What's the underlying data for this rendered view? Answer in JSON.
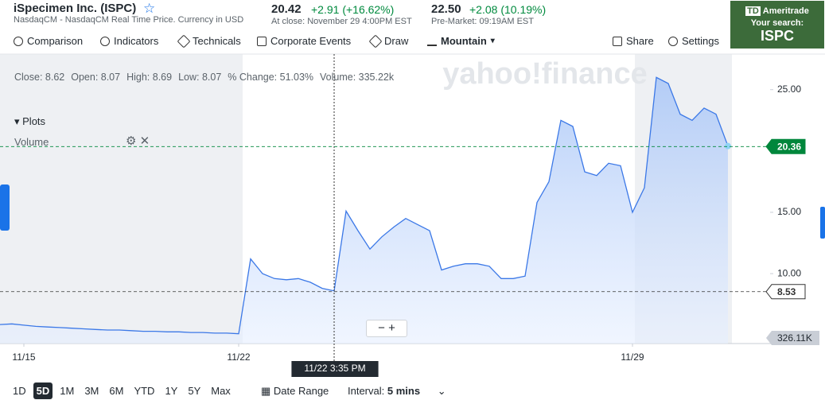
{
  "header": {
    "title": "iSpecimen Inc. (ISPC)",
    "subtitle": "NasdaqCM - NasdaqCM Real Time Price. Currency in USD",
    "price": "20.42",
    "change": "+2.91 (+16.62%)",
    "close_note": "At close: November 29 4:00PM EST",
    "premarket_price": "22.50",
    "premarket_change": "+2.08 (10.19%)",
    "premarket_note": "Pre-Market: 09:19AM EST"
  },
  "ad": {
    "brand": "Ameritrade",
    "line": "Your search:",
    "symbol": "ISPC"
  },
  "toolbar": [
    "Comparison",
    "Indicators",
    "Technicals",
    "Corporate Events",
    "Draw",
    "Mountain",
    "Share",
    "Settings"
  ],
  "stats": [
    "Close: 8.62",
    "Open: 8.07",
    "High: 8.69",
    "Low: 8.07",
    "% Change: 51.03%",
    "Volume: 335.22k"
  ],
  "plots": {
    "title": "Plots",
    "item": "Volume"
  },
  "watermark": "yahoo!finance",
  "chart_data": {
    "type": "line",
    "categories": [
      null,
      null,
      "11/15",
      null,
      null,
      null,
      null,
      null,
      null,
      null,
      null,
      null,
      null,
      null,
      null,
      null,
      null,
      null,
      null,
      null,
      "11/22",
      null,
      null,
      null,
      null,
      null,
      null,
      null,
      null,
      null,
      null,
      null,
      null,
      null,
      null,
      null,
      null,
      null,
      null,
      null,
      null,
      null,
      null,
      null,
      null,
      null,
      null,
      null,
      null,
      null,
      null,
      null,
      null,
      "11/29",
      null,
      null,
      null,
      null,
      null,
      null,
      null,
      null
    ],
    "series": [
      {
        "color": "#3b78e7",
        "values": [
          5.85,
          5.9,
          5.8,
          5.7,
          5.65,
          5.6,
          5.55,
          5.5,
          5.45,
          5.4,
          5.4,
          5.35,
          5.3,
          5.3,
          5.25,
          5.25,
          5.2,
          5.2,
          5.15,
          5.15,
          5.1,
          11.2,
          10.0,
          9.6,
          9.5,
          9.6,
          9.3,
          8.8,
          8.6,
          15.1,
          13.5,
          12.0,
          13.0,
          13.8,
          14.5,
          14.0,
          13.5,
          10.3,
          10.6,
          10.8,
          10.8,
          10.6,
          9.6,
          9.6,
          9.8,
          15.8,
          17.5,
          22.5,
          22.0,
          18.3,
          18.0,
          19.0,
          18.8,
          15.0,
          17.0,
          26.0,
          25.5,
          23.0,
          22.5,
          23.5,
          23.0,
          20.4
        ]
      }
    ],
    "ylim": [
      4.3,
      27.9
    ],
    "yticks": [
      {
        "value": 10,
        "label": "10.00"
      },
      {
        "value": 15,
        "label": "15.00"
      },
      {
        "value": 25,
        "label": "25.00"
      }
    ],
    "reference_lines": [
      {
        "value": 20.36,
        "color": "#00873c"
      },
      {
        "value": 8.53,
        "color": "#333333"
      }
    ],
    "volume_label": "326.11K",
    "crosshair_label": "11/22 3:35 PM"
  },
  "ranges": [
    "1D",
    "5D",
    "1M",
    "3M",
    "6M",
    "YTD",
    "1Y",
    "5Y",
    "Max"
  ],
  "date_range": "Date Range",
  "interval_label": "Interval:",
  "interval": "5 mins"
}
